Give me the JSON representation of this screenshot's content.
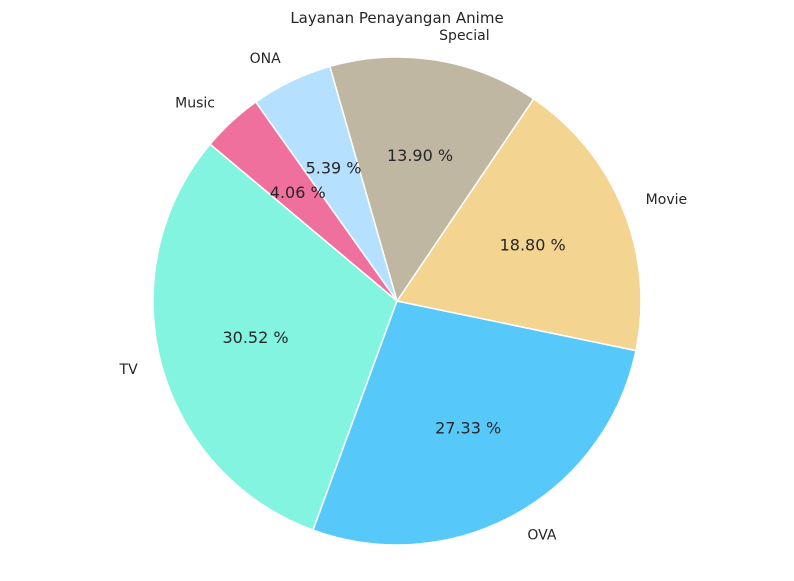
{
  "chart_data": {
    "type": "pie",
    "title": "Layanan Penayangan Anime",
    "slices": [
      {
        "label": "TV",
        "value": 30.52,
        "pct_text": "30.52 %",
        "color": "#82F4E0"
      },
      {
        "label": "OVA",
        "value": 27.33,
        "pct_text": "27.33 %",
        "color": "#56C9FA"
      },
      {
        "label": "Movie",
        "value": 18.8,
        "pct_text": "18.80 %",
        "color": "#F4D491"
      },
      {
        "label": "Special",
        "value": 13.9,
        "pct_text": "13.90 %",
        "color": "#BFB7A2"
      },
      {
        "label": "ONA",
        "value": 5.39,
        "pct_text": "5.39 %",
        "color": "#B5E0FF"
      },
      {
        "label": "Music",
        "value": 4.06,
        "pct_text": "4.06 %",
        "color": "#F0709D"
      }
    ],
    "start_angle_deg": 140,
    "direction": "counterclockwise"
  }
}
